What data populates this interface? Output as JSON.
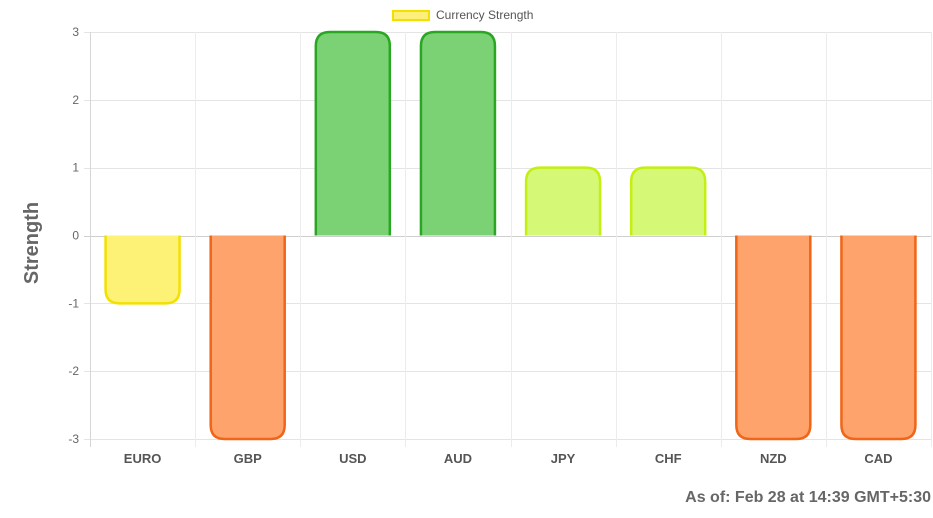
{
  "chart_data": {
    "type": "bar",
    "title": "",
    "xlabel": "",
    "ylabel": "Strength",
    "categories": [
      "EURO",
      "GBP",
      "USD",
      "AUD",
      "JPY",
      "CHF",
      "NZD",
      "CAD"
    ],
    "series": [
      {
        "name": "Currency Strength",
        "values": [
          -1,
          -3,
          3,
          3,
          1,
          1,
          -3,
          -3
        ]
      }
    ],
    "ylim": [
      -3,
      3
    ],
    "yticks": [
      3,
      2,
      1,
      0,
      -1,
      -2,
      -3
    ],
    "grid": true,
    "legend": "top-center",
    "bar_colors": {
      "fill": [
        "#fdf176",
        "#fea36c",
        "#7bd274",
        "#7bd274",
        "#d5f876",
        "#d5f876",
        "#fea36c",
        "#fea36c"
      ],
      "border": [
        "#f2e000",
        "#f06517",
        "#2aa722",
        "#2aa722",
        "#c4ef12",
        "#c4ef12",
        "#f06517",
        "#f06517"
      ]
    }
  },
  "legend": {
    "label": "Currency Strength",
    "swatch_color": "#fdf07a",
    "swatch_border": "#f2e100"
  },
  "footer": {
    "as_of": "As of: Feb 28 at 14:39 GMT+5:30"
  }
}
